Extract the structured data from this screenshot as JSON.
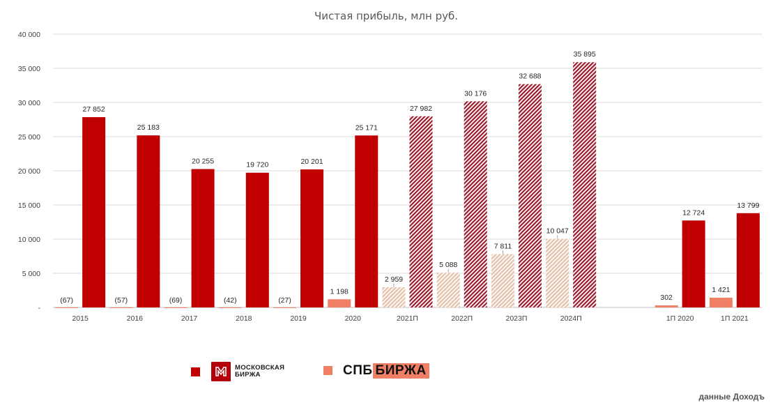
{
  "chart_data": {
    "type": "bar",
    "title": "Чистая прибыль, млн руб.",
    "ylim": [
      0,
      40000
    ],
    "y_ticks": [
      {
        "value": 0,
        "label": "-"
      },
      {
        "value": 5000,
        "label": "5 000"
      },
      {
        "value": 10000,
        "label": "10 000"
      },
      {
        "value": 15000,
        "label": "15 000"
      },
      {
        "value": 20000,
        "label": "20 000"
      },
      {
        "value": 25000,
        "label": "25 000"
      },
      {
        "value": 30000,
        "label": "30 000"
      },
      {
        "value": 35000,
        "label": "35 000"
      },
      {
        "value": 40000,
        "label": "40 000"
      }
    ],
    "categories": [
      "2015",
      "2016",
      "2017",
      "2018",
      "2019",
      "2020",
      "2021П",
      "2022П",
      "2023П",
      "2024П",
      "",
      "1П 2020",
      "1П 2021"
    ],
    "series": [
      {
        "name": "СПБ Биржа",
        "color": "#f07f66",
        "values": [
          -67,
          -57,
          -69,
          -42,
          -27,
          1198,
          2959,
          5088,
          7811,
          10047,
          null,
          302,
          1421
        ],
        "labels": [
          "(67)",
          "(57)",
          "(69)",
          "(42)",
          "(27)",
          "1 198",
          "2 959",
          "5 088",
          "7 811",
          "10 047",
          "",
          "302",
          "1 421"
        ],
        "forecast": [
          false,
          false,
          false,
          false,
          false,
          false,
          true,
          true,
          true,
          true,
          false,
          false,
          false
        ]
      },
      {
        "name": "Московская Биржа",
        "color": "#c00000",
        "values": [
          27852,
          25183,
          20255,
          19720,
          20201,
          25171,
          27982,
          30176,
          32688,
          35895,
          null,
          12724,
          13799
        ],
        "labels": [
          "27 852",
          "25 183",
          "20 255",
          "19 720",
          "20 201",
          "25 171",
          "27 982",
          "30 176",
          "32 688",
          "35 895",
          "",
          "12 724",
          "13 799"
        ],
        "forecast": [
          false,
          false,
          false,
          false,
          false,
          false,
          true,
          true,
          true,
          true,
          false,
          false,
          false
        ]
      }
    ],
    "legend": [
      {
        "series": "Московская Биржа",
        "logo_text_line1": "МОСКОВСКАЯ",
        "logo_text_line2": "БИРЖА"
      },
      {
        "series": "СПБ Биржа",
        "logo_text_a": "СПБ",
        "logo_text_b": "БИРЖА"
      }
    ],
    "source": "данные Доходъ"
  }
}
